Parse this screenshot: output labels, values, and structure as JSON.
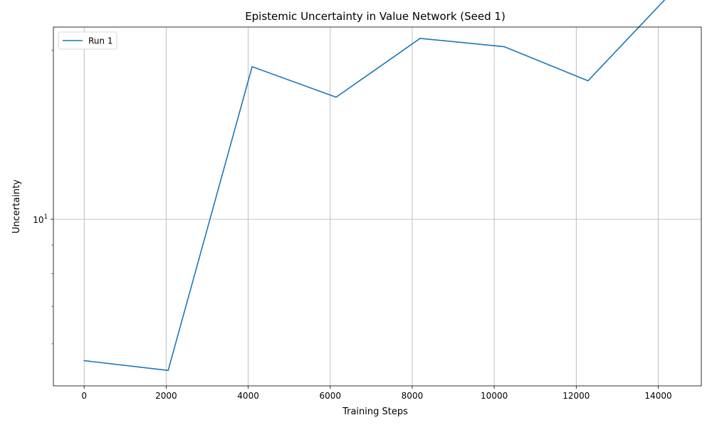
{
  "chart_data": {
    "type": "line",
    "title": "Epistemic Uncertainty in Value Network (Seed 1)",
    "xlabel": "Training Steps",
    "ylabel": "Uncertainty",
    "yscale": "log",
    "xlim": [
      -750,
      15050
    ],
    "ylim": [
      5.05,
      22.0
    ],
    "x_ticks": [
      0,
      2000,
      4000,
      6000,
      8000,
      10000,
      12000,
      14000
    ],
    "x_tick_labels": [
      "0",
      "2000",
      "4000",
      "6000",
      "8000",
      "10000",
      "12000",
      "14000"
    ],
    "y_major_tick": {
      "value": 10,
      "base": "10",
      "exponent": "1"
    },
    "y_minor_ticks": [
      6,
      7,
      8,
      9,
      20
    ],
    "grid": true,
    "legend": {
      "position": "top-left"
    },
    "series": [
      {
        "name": "Run 1",
        "color": "#1f77b4",
        "x": [
          0,
          2048,
          4096,
          6144,
          8192,
          10240,
          12288,
          14336
        ],
        "y": [
          5.6,
          5.38,
          18.7,
          16.5,
          21.0,
          20.3,
          17.65,
          25.4
        ]
      }
    ]
  }
}
